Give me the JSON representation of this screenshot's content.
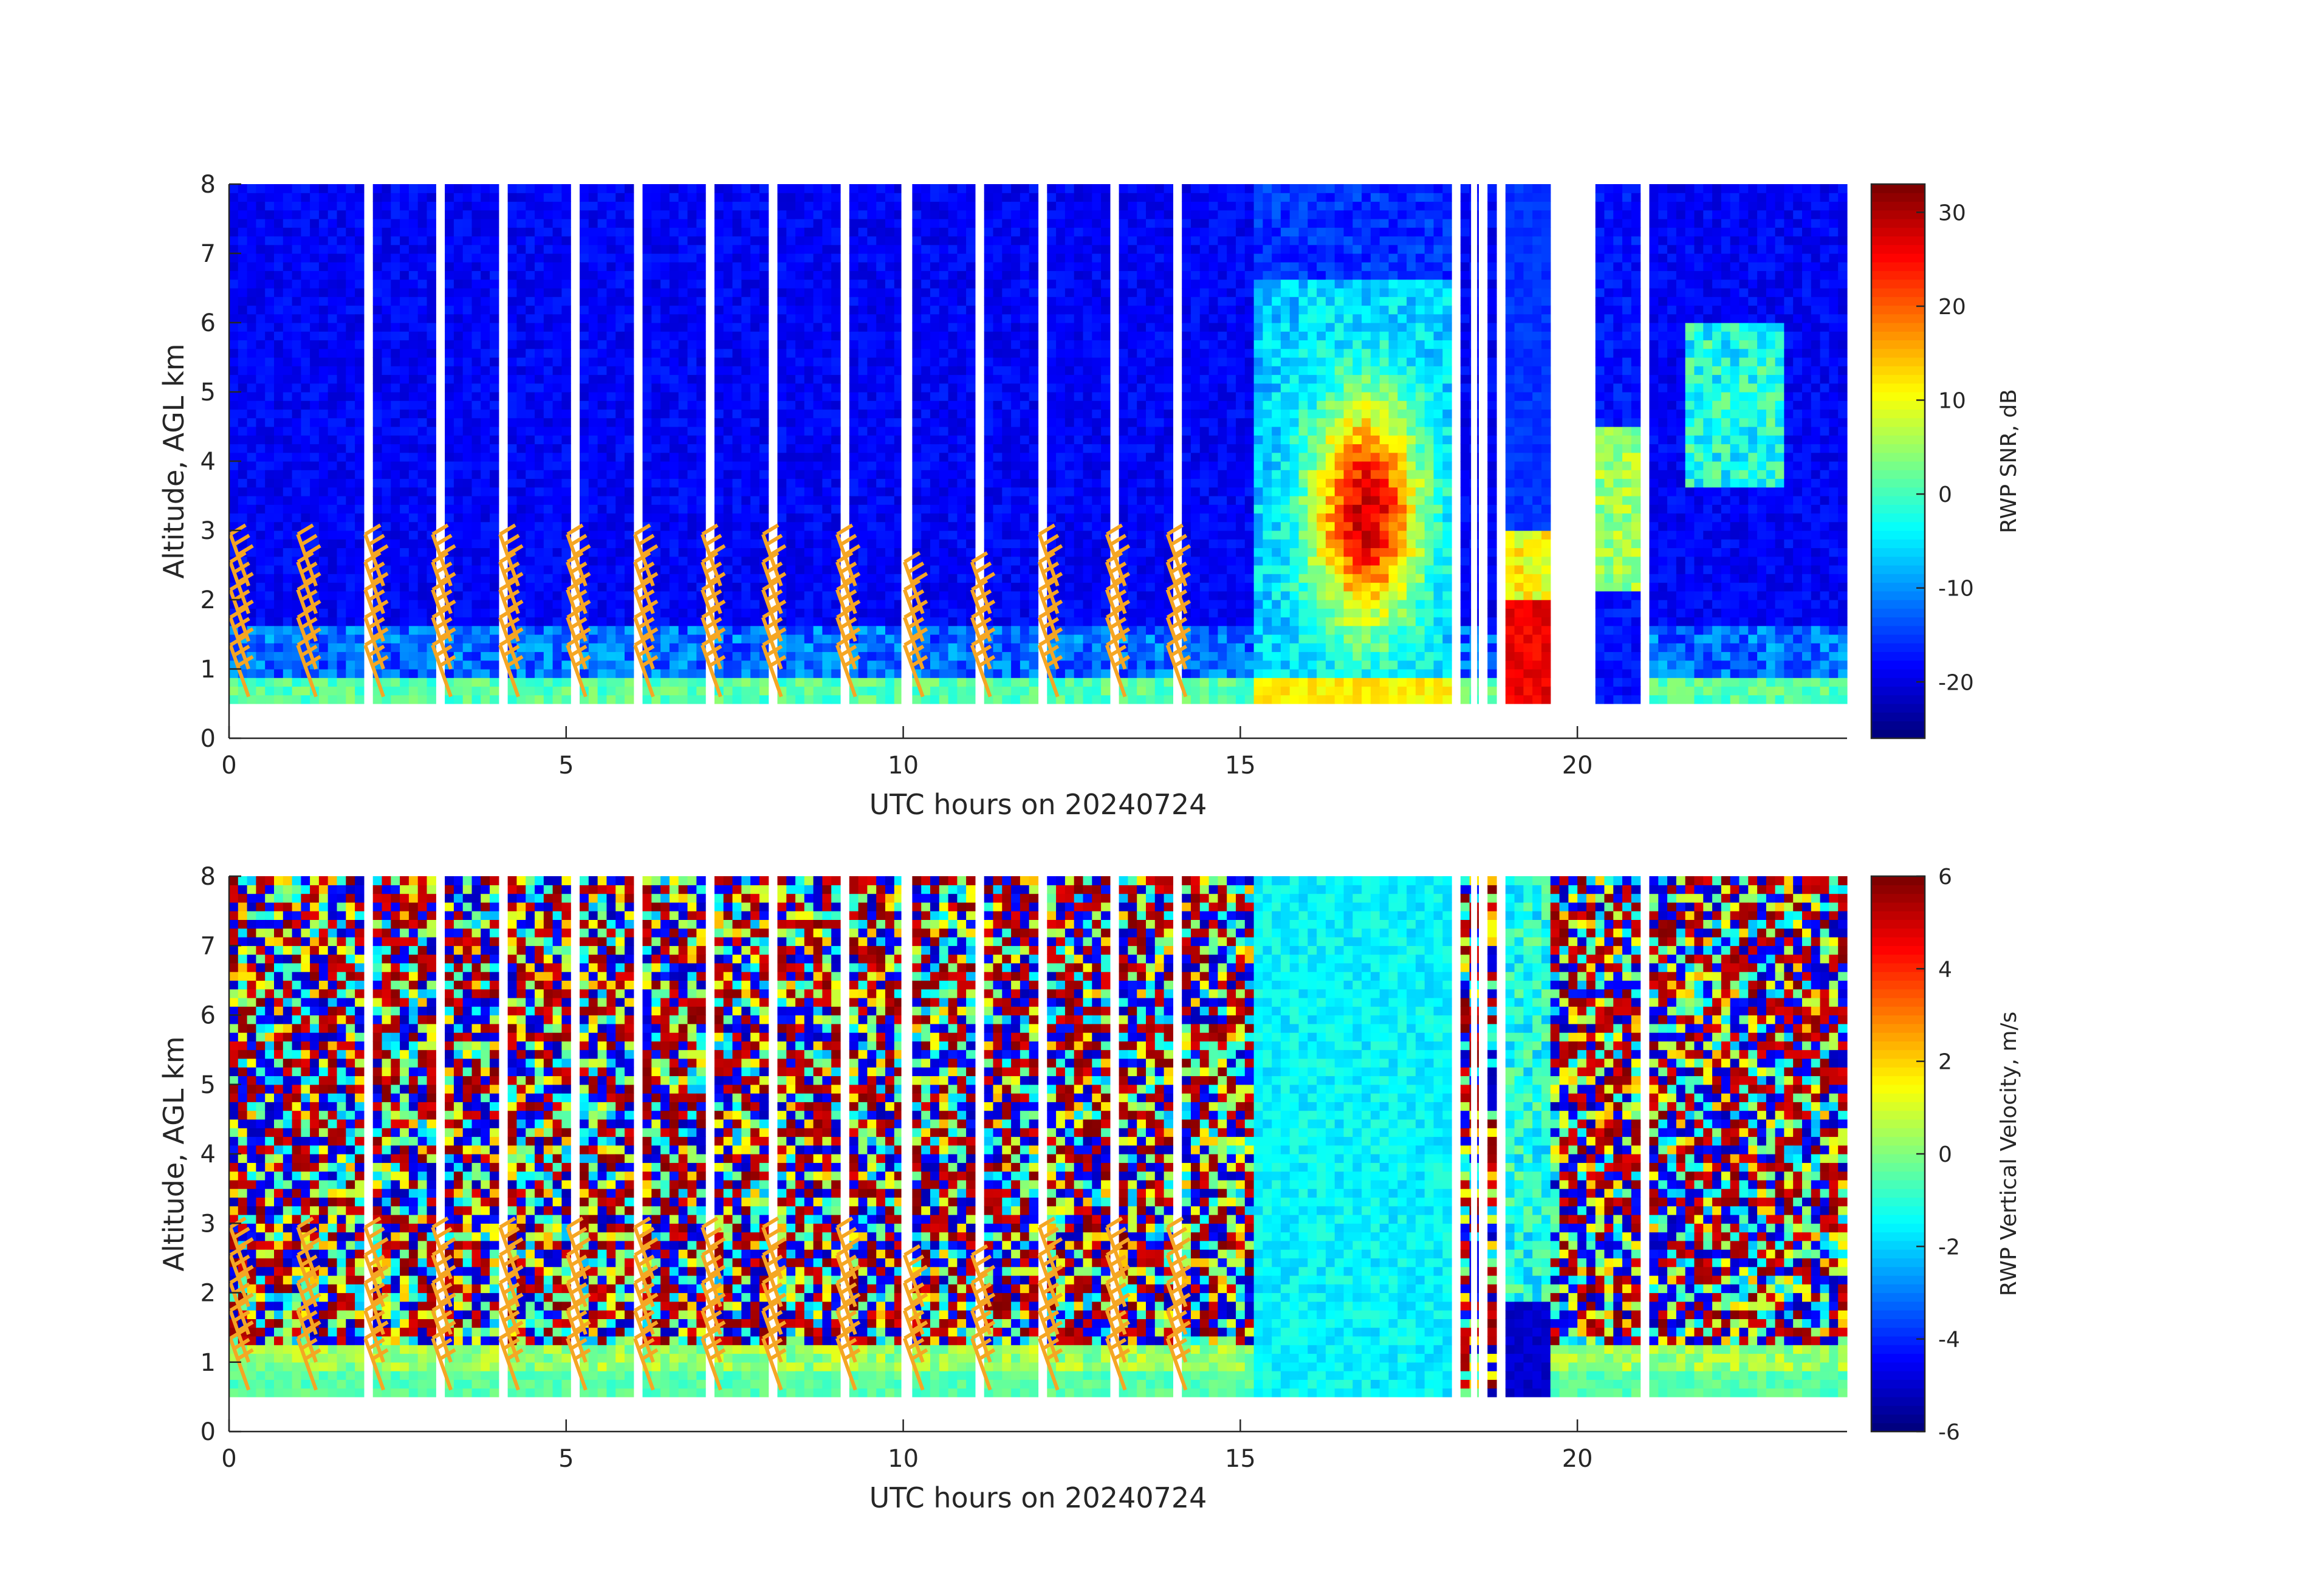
{
  "chart_data": [
    {
      "type": "heatmap",
      "panel": "top",
      "xlabel": "UTC hours on 20240724",
      "ylabel": "Altitude, AGL km",
      "xlim": [
        0,
        24
      ],
      "ylim": [
        0,
        8
      ],
      "xticks": [
        0,
        5,
        10,
        15,
        20
      ],
      "yticks": [
        0,
        1,
        2,
        3,
        4,
        5,
        6,
        7,
        8
      ],
      "colormap": "jet",
      "colorbar": {
        "label": "RWP SNR, dB",
        "range": [
          -26,
          33
        ],
        "ticks": [
          -20,
          -10,
          0,
          10,
          20,
          30
        ]
      },
      "grid": false,
      "overlay": "wind barbs (orange)"
    },
    {
      "type": "heatmap",
      "panel": "bottom",
      "xlabel": "UTC hours on 20240724",
      "ylabel": "Altitude, AGL km",
      "xlim": [
        0,
        24
      ],
      "ylim": [
        0,
        8
      ],
      "xticks": [
        0,
        5,
        10,
        15,
        20
      ],
      "yticks": [
        0,
        1,
        2,
        3,
        4,
        5,
        6,
        7,
        8
      ],
      "colormap": "jet",
      "colorbar": {
        "label": "RWP Vertical Velocity, m/s",
        "range": [
          -6,
          6
        ],
        "ticks": [
          -6,
          -4,
          -2,
          0,
          2,
          4,
          6
        ]
      },
      "grid": false,
      "overlay": "wind barbs (orange)"
    }
  ],
  "colors": {
    "barb": "#f5a623",
    "axis": "#262626",
    "background": "#ffffff"
  }
}
